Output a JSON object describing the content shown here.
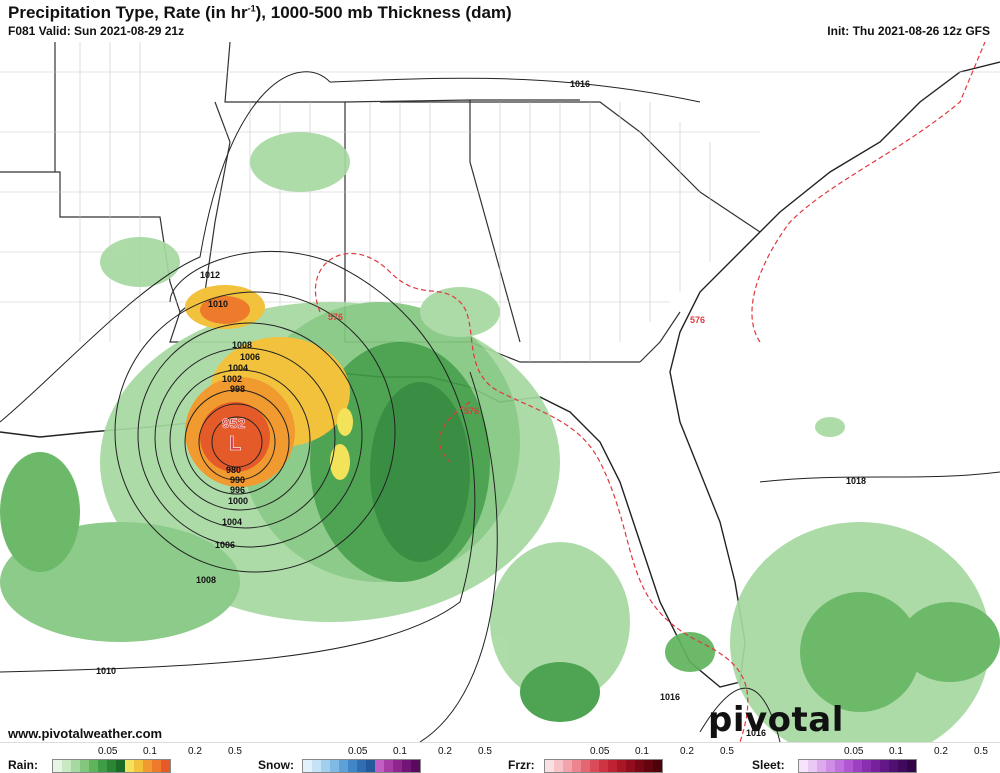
{
  "header": {
    "title_main": "Precipitation Type, Rate (in hr",
    "title_sup": "-1",
    "title_tail": "), 1000-500 mb Thickness (dam)",
    "valid": "F081 Valid: Sun 2021-08-29 21z",
    "init": "Init: Thu 2021-08-26 12z GFS"
  },
  "map": {
    "low_pressure_value": "952",
    "low_letter": "L",
    "isobar_labels": [
      "1016",
      "1012",
      "1010",
      "1008",
      "1006",
      "1004",
      "1002",
      "998",
      "980",
      "990",
      "996",
      "1000",
      "1004",
      "1006",
      "1008",
      "1010",
      "1018",
      "1016",
      "1016"
    ],
    "thickness_labels": [
      "576",
      "576",
      "576",
      "576"
    ]
  },
  "footer": {
    "url": "www.pivotalweather.com",
    "logo": "pivotal weather"
  },
  "legend": {
    "rain": {
      "label": "Rain:",
      "ticks": [
        "0.05",
        "0.1",
        "0.2",
        "0.5"
      ],
      "colors": [
        "#e8f5e4",
        "#c9e9c3",
        "#a6d9a1",
        "#83c77f",
        "#60b45e",
        "#3f9d45",
        "#2a8535",
        "#1a6b28",
        "#f3e35a",
        "#f2c23d",
        "#f19a2f",
        "#ee7b2b",
        "#e45a28"
      ]
    },
    "snow": {
      "label": "Snow:",
      "ticks": [
        "0.05",
        "0.1",
        "0.2",
        "0.5"
      ],
      "colors": [
        "#e3f1fb",
        "#c5e2f6",
        "#a2cfee",
        "#7fb9e4",
        "#5ea1d8",
        "#4186c7",
        "#2f6eb3",
        "#235a9c",
        "#c35ec5",
        "#a93da7",
        "#8e268e",
        "#731576",
        "#5a0a5e"
      ]
    },
    "frzr": {
      "label": "Frzr:",
      "ticks": [
        "0.05",
        "0.1",
        "0.2",
        "0.5"
      ],
      "colors": [
        "#fbe0e3",
        "#f7c3c9",
        "#f2a3ac",
        "#ec8590",
        "#e56673",
        "#db4a58",
        "#cf3442",
        "#bf2333",
        "#a91626",
        "#920d1d",
        "#7a0715",
        "#63040f",
        "#4e020a"
      ]
    },
    "sleet": {
      "label": "Sleet:",
      "ticks": [
        "0.05",
        "0.1",
        "0.2",
        "0.5"
      ],
      "colors": [
        "#f6e4fb",
        "#ebc9f5",
        "#deaaee",
        "#d08de6",
        "#c171dd",
        "#b057d1",
        "#9d40c2",
        "#8a2fb0",
        "#77229c",
        "#641787",
        "#520f72",
        "#41095e",
        "#320549"
      ]
    }
  },
  "icons": {
    "low_center": "low-pressure-marker"
  }
}
